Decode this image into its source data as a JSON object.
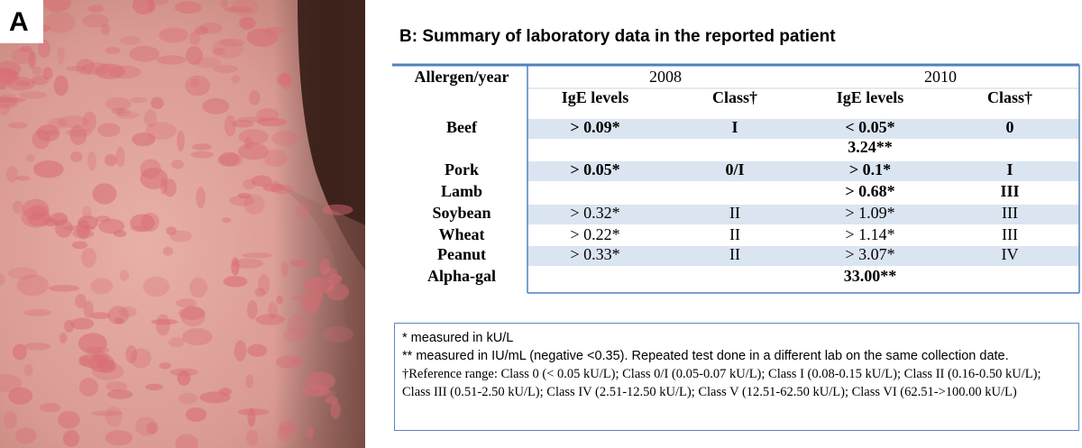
{
  "panel_a": {
    "label": "A"
  },
  "panel_b": {
    "title": "B: Summary of laboratory data in the reported patient",
    "table": {
      "header": [
        "Allergen/year",
        "2008",
        "2010"
      ],
      "subheader": [
        "IgE levels",
        "Class†",
        "IgE levels",
        "Class†"
      ],
      "rows": [
        [
          "Beef",
          "> 0.09*",
          "I",
          "< 0.05*",
          "0"
        ],
        [
          null,
          null,
          null,
          "3.24**",
          null
        ],
        [
          "Pork",
          "> 0.05*",
          "0/I",
          "> 0.1*",
          "I"
        ],
        [
          "Lamb",
          null,
          null,
          "> 0.68*",
          "III"
        ],
        [
          "Soybean",
          "> 0.32*",
          "II",
          "> 1.09*",
          "III"
        ],
        [
          "Wheat",
          "> 0.22*",
          "II",
          "> 1.14*",
          "III"
        ],
        [
          "Peanut",
          "> 0.33*",
          "II",
          "> 3.07*",
          "IV"
        ],
        [
          "Alpha-gal",
          null,
          null,
          "33.00**",
          null
        ]
      ]
    },
    "notes": [
      "* measured in kU/L",
      "** measured in IU/mL (negative <0.35). Repeated test done in a different lab on the same collection date.",
      "†Reference range: Class 0 (< 0.05 kU/L); Class 0/I (0.05-0.07 kU/L); Class I (0.08-0.15 kU/L); Class II (0.16-0.50 kU/L); Class III (0.51-2.50 kU/L); Class IV (2.51-12.50 kU/L); Class V (12.51-62.50 kU/L); Class VI (62.51->100.00 kU/L)"
    ]
  }
}
